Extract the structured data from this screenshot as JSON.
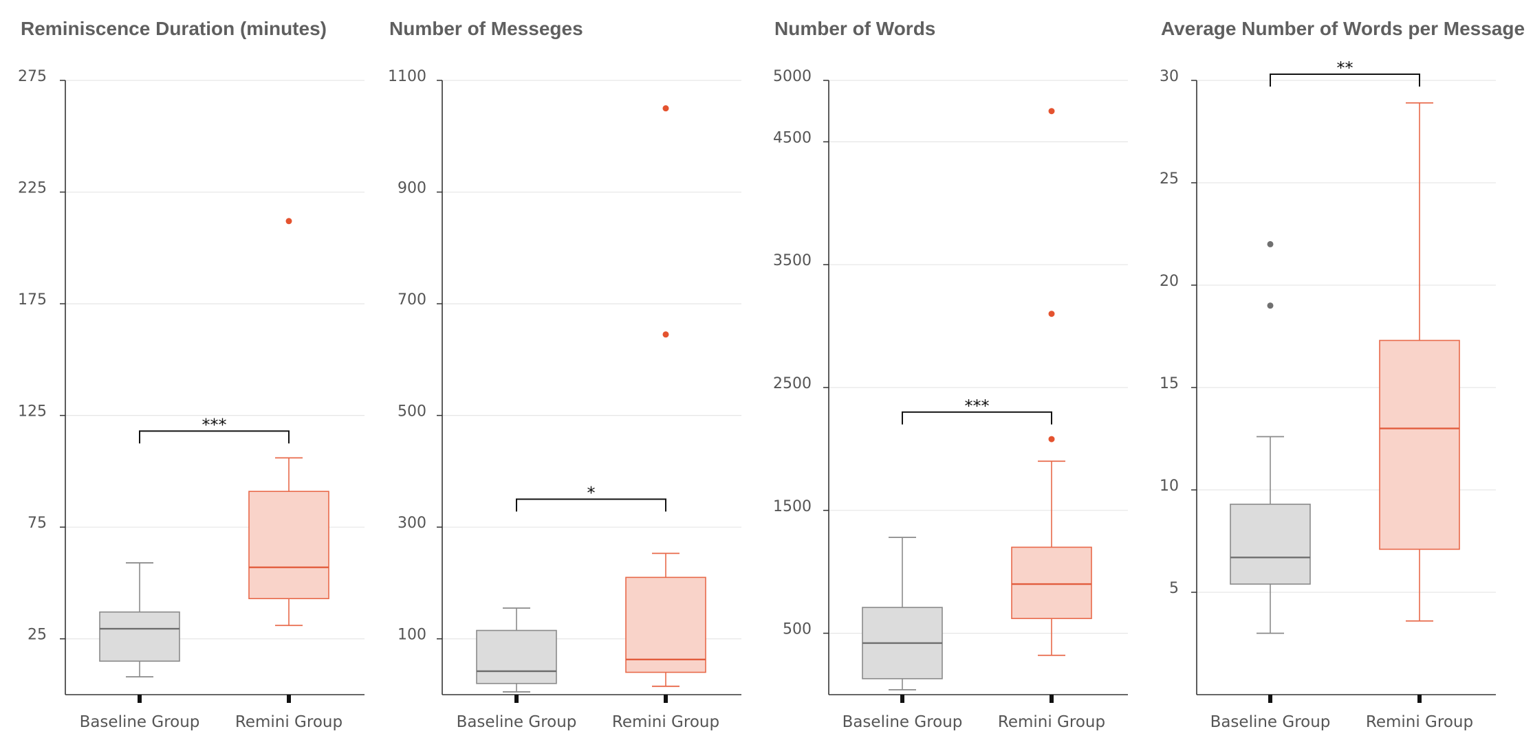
{
  "colors": {
    "baseline_fill": "#dcdcdc",
    "baseline_stroke": "#8a8a8a",
    "baseline_median": "#6e6e6e",
    "baseline_outlier": "#707070",
    "remini_fill": "#f9d3c9",
    "remini_stroke": "#e8694a",
    "remini_median": "#e25c3d",
    "remini_outlier": "#e4532f",
    "axis": "#333333",
    "grid": "#e6e6e6",
    "bracket": "#111111"
  },
  "chart_data": [
    {
      "type": "box",
      "title": "Reminiscence Duration (minutes)",
      "categories": [
        "Baseline Group",
        "Remini Group"
      ],
      "yticks": [
        25,
        75,
        125,
        175,
        225,
        275
      ],
      "ylim": [
        0,
        275
      ],
      "grid": true,
      "series": [
        {
          "min": 8,
          "q1": 15,
          "median": 29.5,
          "q3": 37,
          "max": 59,
          "outliers": []
        },
        {
          "min": 31,
          "q1": 43,
          "median": 57,
          "q3": 91,
          "max": 106,
          "outliers": [
            212
          ]
        }
      ],
      "significance": {
        "label": "***",
        "y": 118
      }
    },
    {
      "type": "box",
      "title": "Number of Messeges",
      "categories": [
        "Baseline Group",
        "Remini Group"
      ],
      "yticks": [
        100,
        300,
        500,
        700,
        900,
        1100
      ],
      "ylim": [
        0,
        1100
      ],
      "grid": true,
      "series": [
        {
          "min": 5,
          "q1": 20,
          "median": 42,
          "q3": 115,
          "max": 155,
          "outliers": []
        },
        {
          "min": 15,
          "q1": 40,
          "median": 63,
          "q3": 210,
          "max": 253,
          "outliers": [
            645,
            1050
          ]
        }
      ],
      "significance": {
        "label": "*",
        "y": 350
      }
    },
    {
      "type": "box",
      "title": "Number of Words",
      "categories": [
        "Baseline Group",
        "Remini Group"
      ],
      "yticks": [
        500,
        1500,
        2500,
        3500,
        4500,
        5000
      ],
      "ylim": [
        0,
        5000
      ],
      "grid": true,
      "series": [
        {
          "min": 40,
          "q1": 130,
          "median": 420,
          "q3": 710,
          "max": 1280,
          "outliers": []
        },
        {
          "min": 320,
          "q1": 620,
          "median": 900,
          "q3": 1200,
          "max": 1900,
          "outliers": [
            2080,
            3100,
            4750
          ]
        }
      ],
      "significance": {
        "label": "***",
        "y": 2300
      }
    },
    {
      "type": "box",
      "title": "Average Number of Words per Message",
      "categories": [
        "Baseline Group",
        "Remini Group"
      ],
      "yticks": [
        5,
        10,
        15,
        20,
        25,
        30
      ],
      "ylim": [
        0,
        30
      ],
      "grid": true,
      "series": [
        {
          "min": 3,
          "q1": 5.4,
          "median": 6.7,
          "q3": 9.3,
          "max": 12.6,
          "outliers": [
            19,
            22
          ]
        },
        {
          "min": 3.6,
          "q1": 7.1,
          "median": 13,
          "q3": 17.3,
          "max": 28.9,
          "outliers": []
        }
      ],
      "significance": {
        "label": "**",
        "y": 30.3
      }
    }
  ]
}
